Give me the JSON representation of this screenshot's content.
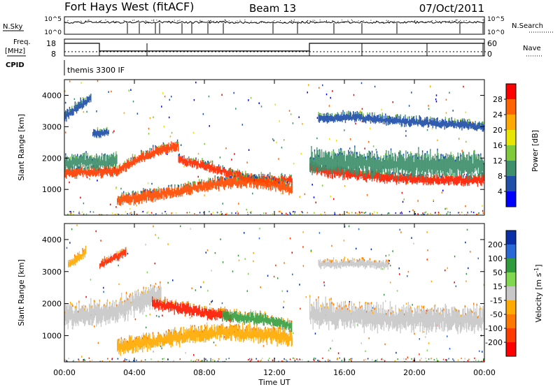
{
  "header": {
    "station": "Fort Hays West (fitACF)",
    "beam": "Beam 13",
    "date": "07/Oct/2011"
  },
  "noise_panel": {
    "left_label": "N.Sky",
    "right_label": "N.Search",
    "left_ticks": [
      "10^5",
      "10^0"
    ],
    "right_ticks": [
      "10^5",
      "10^0"
    ]
  },
  "freq_panel": {
    "left_label_1": "Freq.",
    "left_label_2": "[MHz]",
    "right_label": "Nave",
    "left_ticks": [
      "18",
      "8"
    ],
    "right_ticks": [
      "60",
      "0"
    ],
    "cpid_label": "CPID",
    "cpid_value": "themis 3300 IF"
  },
  "chart_data": [
    {
      "type": "heatmap",
      "name": "power",
      "xlabel": "Time UT",
      "ylabel": "Slant Range [km]",
      "colorbar_label": "Power [dB]",
      "colorbar_ticks": [
        "28",
        "24",
        "20",
        "16",
        "12",
        "8",
        "4"
      ],
      "colorbar_colors": [
        "#ff0000",
        "#ff6400",
        "#ffaa00",
        "#e8e600",
        "#7fc93a",
        "#3e8f6b",
        "#1f4fa8",
        "#0000ff"
      ],
      "x_ticks": [
        "00:00",
        "04:00",
        "08:00",
        "12:00",
        "16:00",
        "20:00",
        "00:00"
      ],
      "y_ticks": [
        "1000",
        "2000",
        "3000",
        "4000"
      ],
      "xlim": [
        0,
        24
      ],
      "ylim": [
        180,
        4500
      ],
      "bands": [
        {
          "x": [
            0.0,
            1.0,
            2.0,
            3.0,
            4.0,
            5.5,
            6.5
          ],
          "y": [
            1500,
            1550,
            1550,
            1600,
            1900,
            2250,
            2400
          ],
          "w": 260,
          "color": "#ff3c00"
        },
        {
          "x": [
            6.5,
            8.0,
            9.5,
            10.5,
            12.0,
            13.0
          ],
          "y": [
            1950,
            1750,
            1500,
            1350,
            1300,
            1300
          ],
          "w": 220,
          "color": "#ff2a00"
        },
        {
          "x": [
            3.0,
            5.0,
            7.0,
            9.0,
            10.5,
            12.0,
            13.0
          ],
          "y": [
            650,
            800,
            1000,
            1200,
            1250,
            1150,
            1000
          ],
          "w": 300,
          "color": "#ff4a00"
        },
        {
          "x": [
            14.0,
            15.0,
            17.0,
            19.0,
            21.0,
            24.0
          ],
          "y": [
            1700,
            1550,
            1450,
            1350,
            1300,
            1300
          ],
          "w": 260,
          "color": "#ff1e00"
        },
        {
          "x": [
            14.0,
            16.0,
            19.0,
            24.0
          ],
          "y": [
            1900,
            1850,
            1800,
            1750
          ],
          "w": 600,
          "color": "#3e8f6b"
        },
        {
          "x": [
            0.0,
            1.0,
            2.0,
            3.0
          ],
          "y": [
            1800,
            1900,
            1850,
            1900
          ],
          "w": 350,
          "color": "#3e8f6b"
        },
        {
          "x": [
            14.5,
            16.5,
            18.5,
            24.0
          ],
          "y": [
            3250,
            3300,
            3200,
            3000
          ],
          "w": 220,
          "color": "#1f4fa8"
        },
        {
          "x": [
            0.0,
            0.7,
            1.5
          ],
          "y": [
            3300,
            3600,
            3900
          ],
          "w": 250,
          "color": "#1f4fa8"
        },
        {
          "x": [
            1.6,
            2.5
          ],
          "y": [
            2800,
            2800
          ],
          "w": 220,
          "color": "#1f4fa8"
        }
      ]
    },
    {
      "type": "heatmap",
      "name": "velocity",
      "xlabel": "Time UT",
      "ylabel": "Slant Range [km]",
      "colorbar_label": "Velocity [m s^-1]",
      "colorbar_ticks": [
        "200",
        "100",
        "50",
        "15",
        "-15",
        "-50",
        "-100",
        "-200"
      ],
      "colorbar_colors": [
        "#0b2fa8",
        "#2a68d8",
        "#2f9b3c",
        "#7fd850",
        "#c8c8c8",
        "#ffaa00",
        "#ff7800",
        "#ff3c00",
        "#ff0000"
      ],
      "x_ticks": [
        "00:00",
        "04:00",
        "08:00",
        "12:00",
        "16:00",
        "20:00",
        "00:00"
      ],
      "y_ticks": [
        "1000",
        "2000",
        "3000",
        "4000"
      ],
      "xlim": [
        0,
        24
      ],
      "ylim": [
        180,
        4500
      ],
      "bands": [
        {
          "x": [
            0.0,
            1.0,
            2.0,
            3.0,
            4.0,
            5.5
          ],
          "y": [
            1600,
            1650,
            1700,
            1750,
            2000,
            2300
          ],
          "w": 550,
          "color": "#c8c8c8"
        },
        {
          "x": [
            5.0,
            6.0,
            8.0,
            9.5
          ],
          "y": [
            2000,
            1900,
            1700,
            1600
          ],
          "w": 280,
          "color": "#ff1a00"
        },
        {
          "x": [
            9.0,
            10.5,
            12.0,
            13.0
          ],
          "y": [
            1650,
            1550,
            1450,
            1300
          ],
          "w": 280,
          "color": "#3aa040"
        },
        {
          "x": [
            3.0,
            5.0,
            7.0,
            9.0,
            11.0,
            13.0
          ],
          "y": [
            650,
            800,
            1000,
            1100,
            1050,
            900
          ],
          "w": 380,
          "color": "#ffaa00"
        },
        {
          "x": [
            14.0,
            16.0,
            19.0,
            24.0
          ],
          "y": [
            1700,
            1600,
            1500,
            1500
          ],
          "w": 600,
          "color": "#c8c8c8"
        },
        {
          "x": [
            14.5,
            16.5,
            18.5
          ],
          "y": [
            3200,
            3250,
            3200
          ],
          "w": 200,
          "color": "#c8c8c8"
        },
        {
          "x": [
            2.0,
            3.5
          ],
          "y": [
            3200,
            3600
          ],
          "w": 200,
          "color": "#ff2a00"
        },
        {
          "x": [
            0.2,
            1.2
          ],
          "y": [
            3200,
            3600
          ],
          "w": 220,
          "color": "#ffaa00"
        }
      ]
    }
  ]
}
